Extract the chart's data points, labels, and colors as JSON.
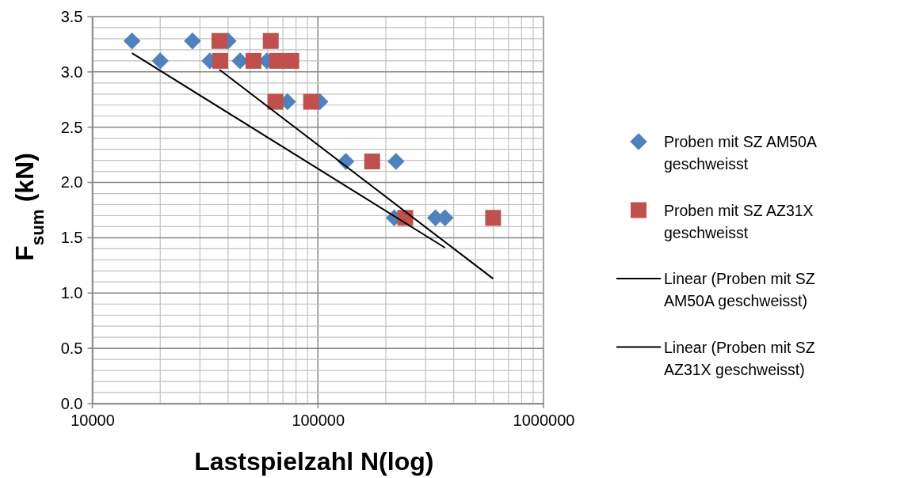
{
  "chart_data": {
    "type": "scatter",
    "xlabel": "Lastspielzahl N(log)",
    "ylabel": "F$_{sum}$ (kN)",
    "log": "x",
    "grid": true,
    "legend": "right",
    "xlim": [
      10000,
      1000000
    ],
    "xticks": [
      10000,
      {
        "value": 20000,
        "label": null
      },
      {
        "value": 30000,
        "label": null
      },
      {
        "value": 40000,
        "label": null
      },
      {
        "value": 50000,
        "label": null
      },
      {
        "value": 60000,
        "label": null
      },
      {
        "value": 70000,
        "label": null
      },
      {
        "value": 80000,
        "label": null
      },
      {
        "value": 90000,
        "label": null
      },
      100000,
      {
        "value": 200000,
        "label": null
      },
      {
        "value": 300000,
        "label": null
      },
      {
        "value": 400000,
        "label": null
      },
      {
        "value": 500000,
        "label": null
      },
      {
        "value": 600000,
        "label": null
      },
      {
        "value": 700000,
        "label": null
      },
      {
        "value": 800000,
        "label": null
      },
      {
        "value": 900000,
        "label": null
      },
      1000000
    ],
    "ylim": [
      0,
      3.5
    ],
    "yticks": [
      {
        "value": 0,
        "label": "0.0"
      },
      {
        "value": 0.1,
        "label": null
      },
      {
        "value": 0.2,
        "label": null
      },
      {
        "value": 0.3,
        "label": null
      },
      {
        "value": 0.4,
        "label": null
      },
      {
        "value": 0.5,
        "label": "0.5"
      },
      {
        "value": 0.6,
        "label": null
      },
      {
        "value": 0.7,
        "label": null
      },
      {
        "value": 0.8,
        "label": null
      },
      {
        "value": 0.9,
        "label": null
      },
      {
        "value": 1,
        "label": "1.0"
      },
      {
        "value": 1.1,
        "label": null
      },
      {
        "value": 1.2,
        "label": null
      },
      {
        "value": 1.3,
        "label": null
      },
      {
        "value": 1.4,
        "label": null
      },
      {
        "value": 1.5,
        "label": "1.5"
      },
      {
        "value": 1.6,
        "label": null
      },
      {
        "value": 1.7,
        "label": null
      },
      {
        "value": 1.8,
        "label": null
      },
      {
        "value": 1.9,
        "label": null
      },
      {
        "value": 2,
        "label": "2.0"
      },
      {
        "value": 2.1,
        "label": null
      },
      {
        "value": 2.2,
        "label": null
      },
      {
        "value": 2.3,
        "label": null
      },
      {
        "value": 2.4,
        "label": null
      },
      {
        "value": 2.5,
        "label": "2.5"
      },
      {
        "value": 2.6,
        "label": null
      },
      {
        "value": 2.7,
        "label": null
      },
      {
        "value": 2.8,
        "label": null
      },
      {
        "value": 2.9,
        "label": null
      },
      {
        "value": 3,
        "label": "3.0"
      },
      {
        "value": 3.1,
        "label": null
      },
      {
        "value": 3.2,
        "label": null
      },
      {
        "value": 3.3,
        "label": null
      },
      {
        "value": 3.4,
        "label": null
      },
      {
        "value": 3.5,
        "label": "3.5"
      }
    ],
    "series": [
      {
        "name": "Proben mit SZ AM50A geschweisst",
        "marker": "diamond",
        "color": "#4f81bd",
        "x": [
          15000,
          27800,
          40000,
          20000,
          33200,
          45200,
          59400,
          73300,
          102000,
          133000,
          222000,
          218000,
          332000,
          366000
        ],
        "values": [
          3.28,
          3.28,
          3.28,
          3.1,
          3.1,
          3.1,
          3.1,
          2.73,
          2.73,
          2.19,
          2.19,
          1.68,
          1.68,
          1.68
        ]
      },
      {
        "name": "Proben mit SZ AZ31X geschweisst",
        "marker": "square",
        "color": "#c0504d",
        "x": [
          36600,
          61800,
          36900,
          51800,
          65900,
          76200,
          64800,
          93300,
          174000,
          244000,
          598000
        ],
        "values": [
          3.28,
          3.28,
          3.1,
          3.1,
          3.1,
          3.1,
          2.73,
          2.73,
          2.19,
          1.68,
          1.68
        ]
      },
      {
        "name": "Linear (Proben mit SZ AM50A geschweisst)",
        "type": "line",
        "marker": "none",
        "line_style": "solid",
        "color": "#000000",
        "x": [
          15000,
          366000
        ],
        "values": [
          3.17,
          1.41
        ]
      },
      {
        "name": "Linear (Proben mit SZ AZ31X geschweisst)",
        "type": "line",
        "marker": "none",
        "line_style": "solid",
        "color": "#000000",
        "x": [
          36600,
          598000
        ],
        "values": [
          3.02,
          1.13
        ]
      }
    ]
  }
}
